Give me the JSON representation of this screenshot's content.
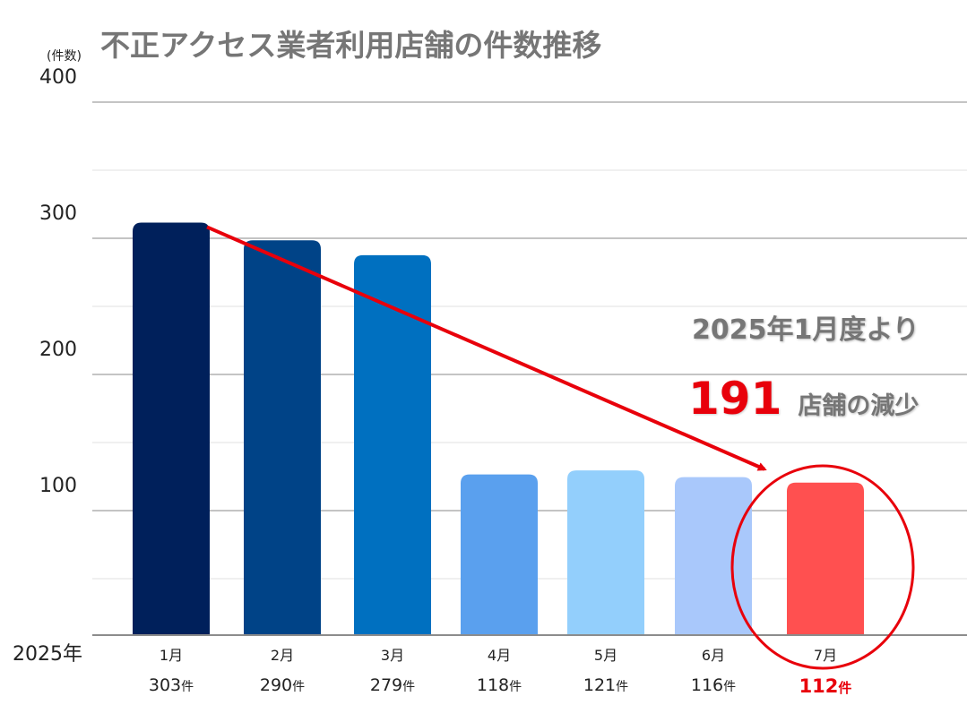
{
  "chart_data": {
    "type": "bar",
    "title": "不正アクセス業者利用店舗の件数推移",
    "ylabel": "(件数)",
    "xlabel": "2025年",
    "ylim": [
      0,
      400
    ],
    "yticks": [
      "100",
      "200",
      "300",
      "400"
    ],
    "categories": [
      "1月",
      "2月",
      "3月",
      "4月",
      "5月",
      "6月",
      "7月"
    ],
    "count_labels": [
      "303",
      "290",
      "279",
      "118",
      "121",
      "116",
      "112"
    ],
    "count_unit": "件",
    "values": [
      303,
      290,
      279,
      118,
      121,
      116,
      112
    ],
    "colors": [
      "#00205b",
      "#004387",
      "#0070c0",
      "#5aa0ee",
      "#93cffc",
      "#a9c8fb",
      "#ff5050"
    ],
    "grid": true,
    "highlight_index": 6,
    "highlight_color": "#e8000b",
    "annotations": {
      "line1": "2025年1月度より",
      "number": "191",
      "suffix": "店舗の減少"
    }
  }
}
